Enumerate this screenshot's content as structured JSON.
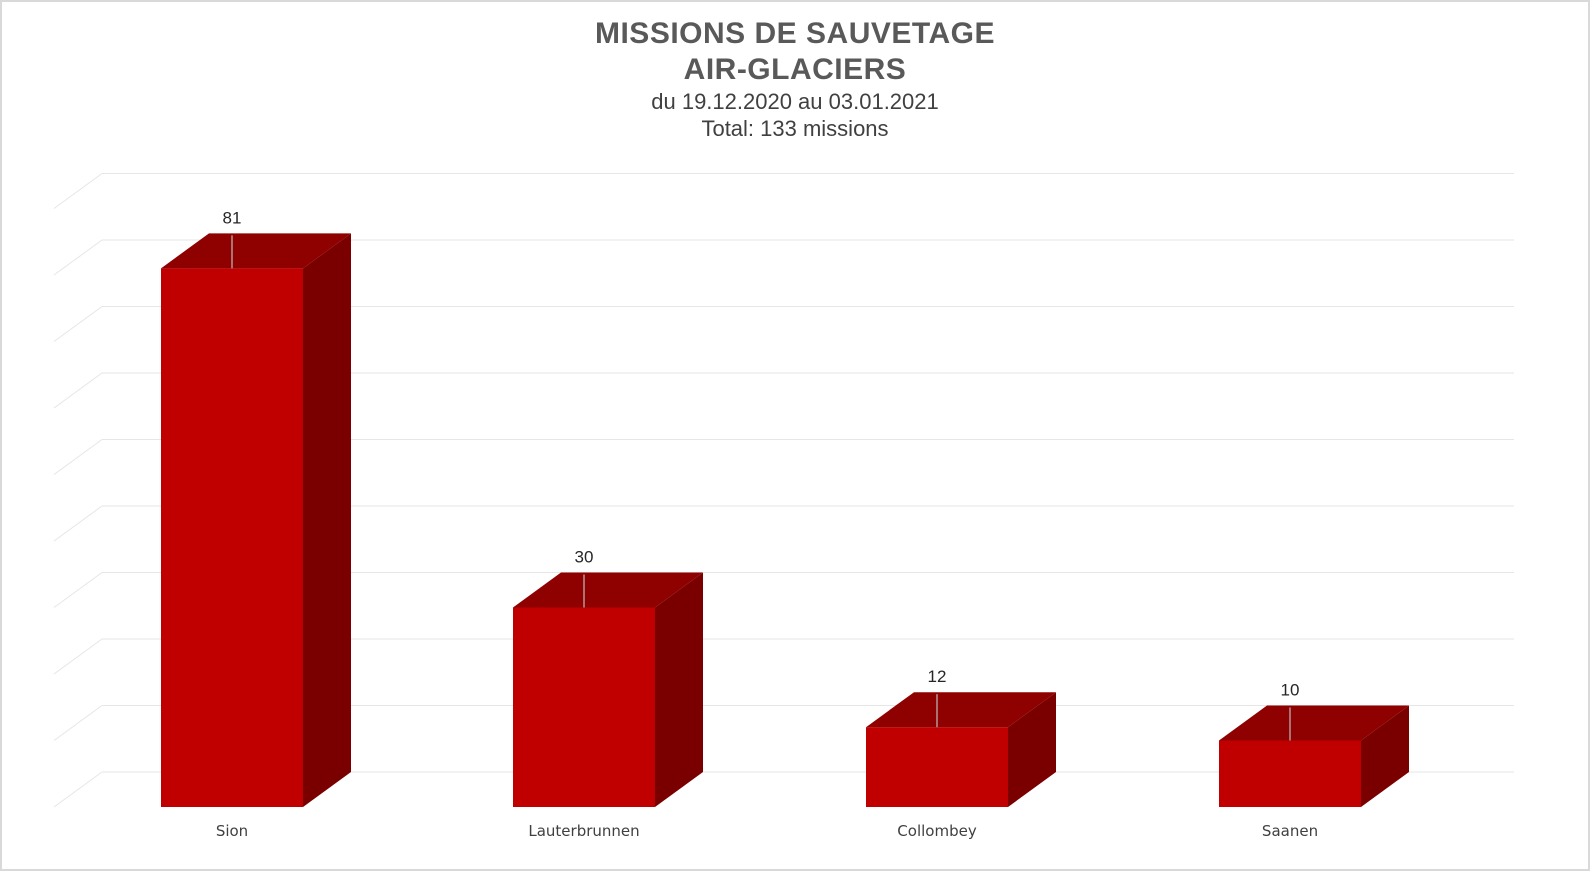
{
  "chart_data": {
    "type": "bar",
    "title": "MISSIONS DE SAUVETAGE",
    "title_line2": "AIR-GLACIERS",
    "subtitle": "du 19.12.2020 au 03.01.2021",
    "subtitle_line2": "Total: 133 missions",
    "categories": [
      "Sion",
      "Lauterbrunnen",
      "Collombey",
      "Saanen"
    ],
    "values": [
      81,
      30,
      12,
      10
    ],
    "data_labels": [
      "81",
      "30",
      "12",
      "10"
    ],
    "xlabel": "",
    "ylabel": "",
    "ylim": [
      0,
      90
    ],
    "grid": true,
    "legend": "none",
    "style": "3d-column",
    "colors": {
      "bar_front": "#c00000",
      "bar_top": "#8f0000",
      "bar_side": "#7a0000",
      "grid": "#e6e6e6",
      "title": "#595959"
    }
  }
}
